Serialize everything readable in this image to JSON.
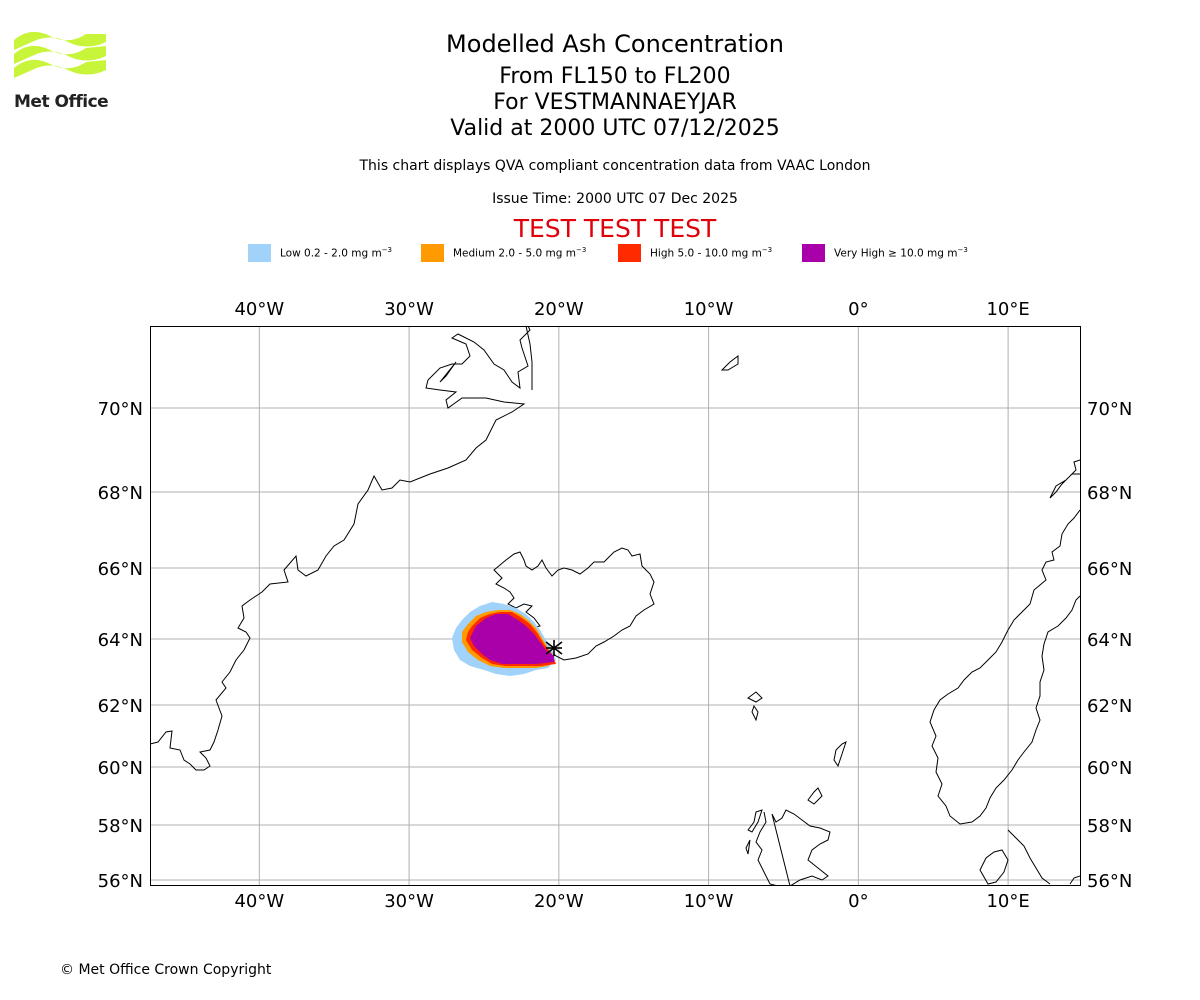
{
  "logo": {
    "text": "Met Office",
    "color": "#c8f53a"
  },
  "title": {
    "line1": "Modelled Ash Concentration",
    "line2": "From FL150 to FL200",
    "line3": "For VESTMANNAEYJAR",
    "line4": "Valid at 2000 UTC 07/12/2025"
  },
  "subtitle": "This chart displays QVA compliant concentration data from VAAC London",
  "issue_time": "Issue Time: 2000 UTC 07 Dec 2025",
  "test_banner": "TEST TEST TEST",
  "legend": [
    {
      "label": "Low 0.2 - 2.0 mg m",
      "color": "#a0d2fa"
    },
    {
      "label": "Medium 2.0 - 5.0 mg m",
      "color": "#ff9a00"
    },
    {
      "label": "High 5.0 - 10.0 mg m",
      "color": "#ff2a00"
    },
    {
      "label": "Very High ≥ 10.0 mg m",
      "color": "#aa00aa"
    }
  ],
  "legend_unit_exp": "−3",
  "map": {
    "lon_range": [
      -47.3,
      14.8
    ],
    "lat_range": [
      55.9,
      72.0
    ],
    "lon_ticks": [
      -40,
      -30,
      -20,
      -10,
      0,
      10
    ],
    "lat_ticks": [
      56,
      58,
      60,
      62,
      64,
      66,
      68,
      70
    ],
    "lon_labels": [
      "40°W",
      "30°W",
      "20°W",
      "10°W",
      "0°",
      "10°E"
    ],
    "lat_labels": [
      "56°N",
      "58°N",
      "60°N",
      "62°N",
      "64°N",
      "66°N",
      "68°N",
      "70°N"
    ],
    "volcano": {
      "name": "Vestmannaeyjar",
      "lon": -20.3,
      "lat": 63.4
    }
  },
  "copyright": "© Met Office Crown Copyright"
}
